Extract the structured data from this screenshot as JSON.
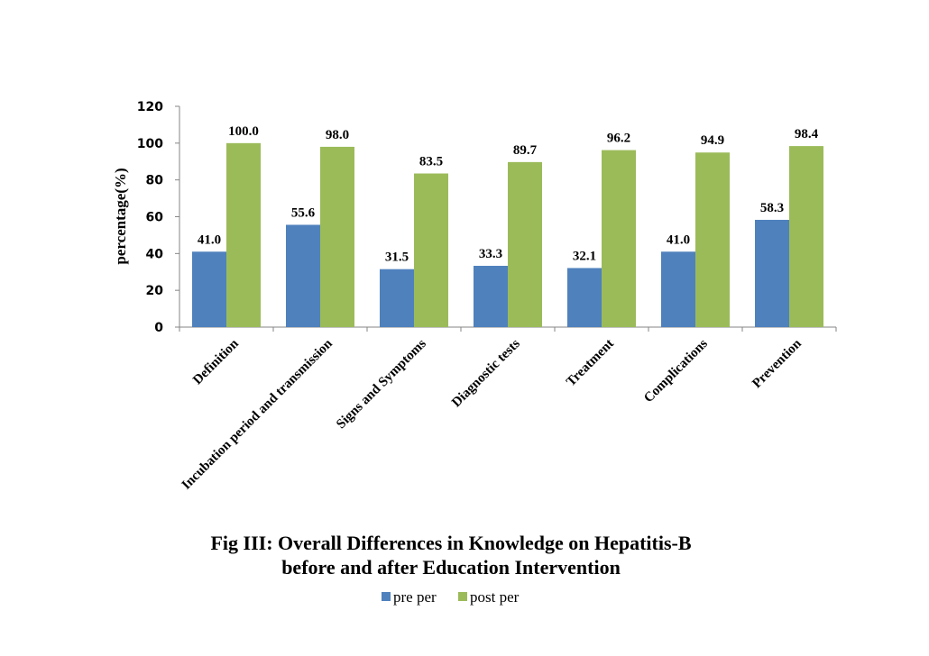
{
  "chart_data": {
    "type": "bar",
    "title": [
      "Fig III: Overall Differences in Knowledge on Hepatitis-B",
      "before and after Education Intervention"
    ],
    "xlabel": "",
    "ylabel": "percentage(%)",
    "ylim": [
      0,
      120
    ],
    "yticks": [
      0,
      20,
      40,
      60,
      80,
      100,
      120
    ],
    "categories": [
      "Definition",
      "Incubation period and transmission",
      "Signs and Symptoms",
      "Diagnostic tests",
      "Treatment",
      "Complications",
      "Prevention"
    ],
    "series": [
      {
        "name": "pre per",
        "color": "#4f81bd",
        "values": [
          41.0,
          55.6,
          31.5,
          33.3,
          32.1,
          41.0,
          58.3
        ],
        "labels": [
          "41.0",
          "55.6",
          "31.5",
          "33.3",
          "32.1",
          "41.0",
          "58.3"
        ]
      },
      {
        "name": "post per",
        "color": "#9bbb59",
        "values": [
          100.0,
          98.0,
          83.5,
          89.7,
          96.2,
          94.9,
          98.4
        ],
        "labels": [
          "100.0",
          "98.0",
          "83.5",
          "89.7",
          "96.2",
          "94.9",
          "98.4"
        ]
      }
    ],
    "grid": false,
    "legend": "bottom"
  }
}
